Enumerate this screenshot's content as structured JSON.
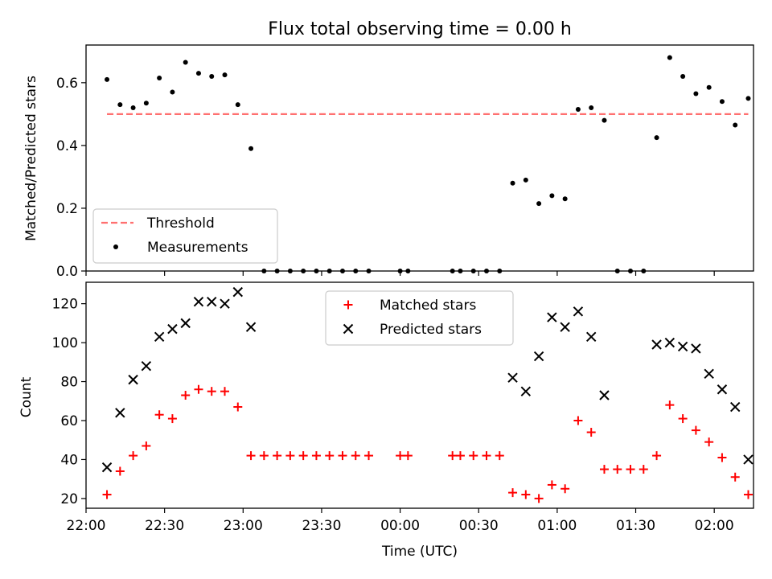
{
  "title": "Flux total observing time = 0.00 h",
  "xlabel": "Time (UTC)",
  "x_ticks": [
    "22:00",
    "22:30",
    "23:00",
    "23:30",
    "00:00",
    "00:30",
    "01:00",
    "01:30",
    "02:00"
  ],
  "chart_data": [
    {
      "type": "scatter",
      "ylabel": "Matched/Predicted stars",
      "xlim": [
        "22:00",
        "02:15"
      ],
      "ylim": [
        0,
        0.72
      ],
      "y_ticks": [
        "0.0",
        "0.2",
        "0.4",
        "0.6"
      ],
      "legend_placement": "lower-left",
      "series": [
        {
          "name": "Threshold",
          "kind": "dashed-line",
          "color": "#ff7070",
          "x": [
            "22:08",
            "02:13"
          ],
          "y": [
            0.5,
            0.5
          ]
        },
        {
          "name": "Measurements",
          "kind": "dot",
          "color": "#000000",
          "x": [
            "22:08",
            "22:13",
            "22:18",
            "22:23",
            "22:28",
            "22:33",
            "22:38",
            "22:43",
            "22:48",
            "22:53",
            "22:58",
            "23:03",
            "23:08",
            "23:13",
            "23:18",
            "23:23",
            "23:28",
            "23:33",
            "23:38",
            "23:43",
            "23:48",
            "00:00",
            "00:03",
            "00:20",
            "00:23",
            "00:28",
            "00:33",
            "00:38",
            "00:43",
            "00:48",
            "00:53",
            "00:58",
            "01:03",
            "01:08",
            "01:13",
            "01:18",
            "01:23",
            "01:28",
            "01:33",
            "01:38",
            "01:43",
            "01:48",
            "01:53",
            "01:58",
            "02:03",
            "02:08",
            "02:13"
          ],
          "y": [
            0.61,
            0.53,
            0.52,
            0.535,
            0.615,
            0.57,
            0.665,
            0.63,
            0.62,
            0.625,
            0.53,
            0.39,
            0.0,
            0.0,
            0.0,
            0.0,
            0.0,
            0.0,
            0.0,
            0.0,
            0.0,
            0.0,
            0.0,
            0.0,
            0.0,
            0.0,
            0.0,
            0.0,
            0.28,
            0.29,
            0.215,
            0.24,
            0.23,
            0.515,
            0.52,
            0.48,
            0.0,
            0.0,
            0.0,
            0.425,
            0.68,
            0.62,
            0.565,
            0.585,
            0.54,
            0.465,
            0.55
          ]
        }
      ]
    },
    {
      "type": "scatter",
      "ylabel": "Count",
      "xlim": [
        "22:00",
        "02:15"
      ],
      "ylim": [
        15,
        131
      ],
      "y_ticks": [
        "20",
        "40",
        "60",
        "80",
        "100",
        "120"
      ],
      "legend_placement": "upper-center",
      "series": [
        {
          "name": "Matched stars",
          "kind": "plus",
          "color": "#ff0000",
          "x": [
            "22:08",
            "22:13",
            "22:18",
            "22:23",
            "22:28",
            "22:33",
            "22:38",
            "22:43",
            "22:48",
            "22:53",
            "22:58",
            "23:03",
            "23:08",
            "23:13",
            "23:18",
            "23:23",
            "23:28",
            "23:33",
            "23:38",
            "23:43",
            "23:48",
            "00:00",
            "00:03",
            "00:20",
            "00:23",
            "00:28",
            "00:33",
            "00:38",
            "00:43",
            "00:48",
            "00:53",
            "00:58",
            "01:03",
            "01:08",
            "01:13",
            "01:18",
            "01:23",
            "01:28",
            "01:33",
            "01:38",
            "01:43",
            "01:48",
            "01:53",
            "01:58",
            "02:03",
            "02:08",
            "02:13"
          ],
          "y": [
            22,
            34,
            42,
            47,
            63,
            61,
            73,
            76,
            75,
            75,
            67,
            42,
            42,
            42,
            42,
            42,
            42,
            42,
            42,
            42,
            42,
            42,
            42,
            42,
            42,
            42,
            42,
            42,
            23,
            22,
            20,
            27,
            25,
            60,
            54,
            35,
            35,
            35,
            35,
            42,
            68,
            61,
            55,
            49,
            41,
            31,
            22
          ]
        },
        {
          "name": "Predicted stars",
          "kind": "cross",
          "color": "#000000",
          "x": [
            "22:08",
            "22:13",
            "22:18",
            "22:23",
            "22:28",
            "22:33",
            "22:38",
            "22:43",
            "22:48",
            "22:53",
            "22:58",
            "23:03",
            "00:43",
            "00:48",
            "00:53",
            "00:58",
            "01:03",
            "01:08",
            "01:13",
            "01:18",
            "01:38",
            "01:43",
            "01:48",
            "01:53",
            "01:58",
            "02:03",
            "02:08",
            "02:13"
          ],
          "y": [
            36,
            64,
            81,
            88,
            103,
            107,
            110,
            121,
            121,
            120,
            126,
            108,
            82,
            75,
            93,
            113,
            108,
            116,
            103,
            73,
            99,
            100,
            98,
            97,
            84,
            76,
            67,
            40
          ]
        }
      ]
    }
  ]
}
